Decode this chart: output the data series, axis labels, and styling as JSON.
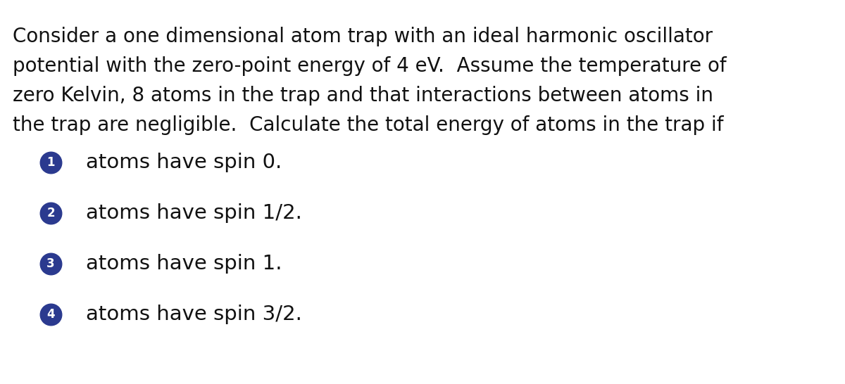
{
  "background_color": "#ffffff",
  "paragraph_lines": [
    "Consider a one dimensional atom trap with an ideal harmonic oscillator",
    "potential with the zero-point energy of 4 eV.  Assume the temperature of",
    "zero Kelvin, 8 atoms in the trap and that interactions between atoms in",
    "the trap are negligible.  Calculate the total energy of atoms in the trap if"
  ],
  "items": [
    {
      "number": "1",
      "text": "atoms have spin 0."
    },
    {
      "number": "2",
      "text": "atoms have spin 1/2."
    },
    {
      "number": "3",
      "text": "atoms have spin 1."
    },
    {
      "number": "4",
      "text": "atoms have spin 3/2."
    }
  ],
  "circle_color": "#2b3a8f",
  "text_color": "#111111",
  "number_color": "#ffffff",
  "font_size_paragraph": 20,
  "font_size_items": 21,
  "font_size_numbers": 12,
  "font_family": "DejaVu Sans"
}
